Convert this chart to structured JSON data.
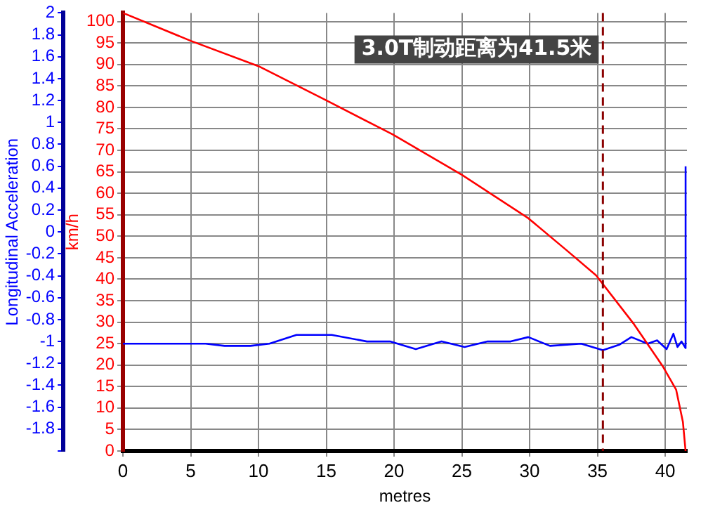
{
  "chart_data": {
    "type": "line",
    "annotations": [
      "3.0T制动距离为41.5米"
    ],
    "xlabel": "metres",
    "ylabel": "Longitudinal Acceleration",
    "y2label": "km/h",
    "xlim": [
      0,
      41.6
    ],
    "xticks": [
      0,
      5,
      10,
      15,
      20,
      25,
      30,
      35,
      40
    ],
    "ylim": [
      -2,
      2
    ],
    "yticks": [
      {
        "value": -2,
        "label": null
      },
      -1.8,
      -1.6,
      -1.4,
      -1.2,
      -1,
      -0.8,
      -0.6,
      -0.4,
      -0.2,
      0,
      0.2,
      0.4,
      0.6,
      0.8,
      1,
      1.2,
      1.4,
      1.6,
      1.8,
      2
    ],
    "y2lim": [
      0,
      102
    ],
    "y2ticks": [
      0,
      5,
      10,
      15,
      20,
      25,
      30,
      35,
      40,
      45,
      50,
      55,
      60,
      65,
      70,
      75,
      80,
      85,
      90,
      95,
      100
    ],
    "grid": true,
    "legend": false,
    "marker": "none",
    "line_style": "solid",
    "ref_lines": [
      {
        "axis": "x",
        "value": 35.4,
        "color": "#8b0000",
        "line_style": "dashed"
      }
    ],
    "series": [
      {
        "color": "#ff0000",
        "axis": "y2",
        "x": [
          0,
          5,
          10,
          14.9,
          19.9,
          25,
          29.9,
          32.7,
          34.9,
          37.7,
          39.8,
          40.8,
          41.3,
          41.5
        ],
        "values": [
          102,
          95.5,
          89.6,
          81.8,
          73.7,
          64.3,
          54.2,
          46.8,
          40.9,
          29.5,
          19.8,
          14.3,
          6.8,
          0
        ]
      },
      {
        "color": "#0000ff",
        "x": [
          0,
          6.1,
          7.5,
          9.4,
          10.8,
          12.8,
          15.4,
          18,
          19.7,
          21.6,
          23.5,
          25.2,
          26.9,
          28.6,
          29.9,
          31.5,
          33.8,
          35.4,
          36.6,
          37.5,
          38.7,
          39.4,
          40.1,
          40.6,
          40.9,
          41.2,
          41.5,
          41.5
        ],
        "values": [
          -1.02,
          -1.02,
          -1.04,
          -1.04,
          -1.02,
          -0.94,
          -0.94,
          -1,
          -1,
          -1.07,
          -1,
          -1.05,
          -1,
          -1,
          -0.96,
          -1.04,
          -1.02,
          -1.08,
          -1.03,
          -0.96,
          -1.02,
          -0.99,
          -1.07,
          -0.93,
          -1.05,
          -1,
          -1.06,
          0.6
        ]
      }
    ]
  }
}
